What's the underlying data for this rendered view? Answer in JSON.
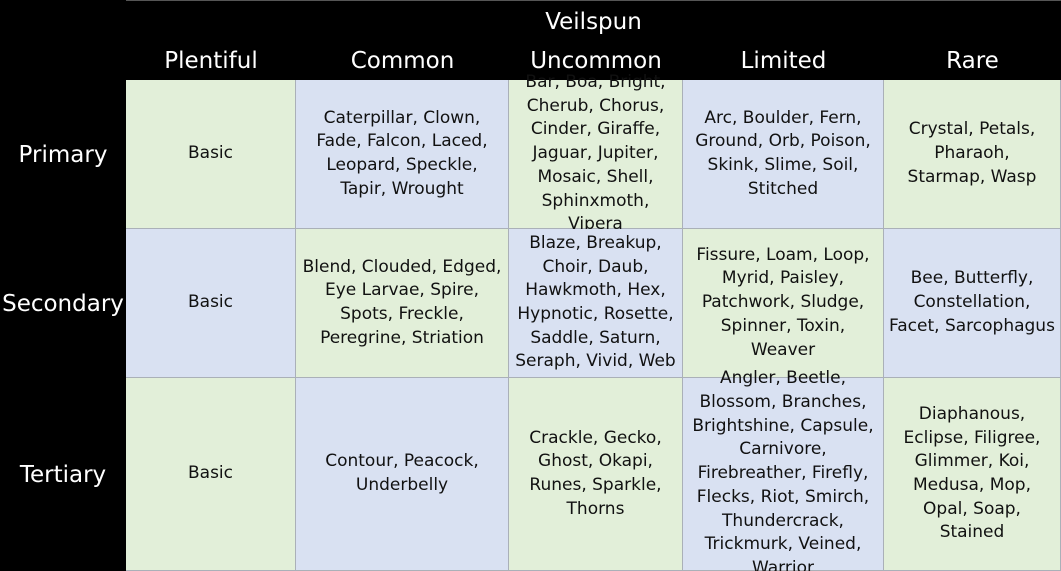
{
  "title": "Veilspun",
  "colors": {
    "green_cell": "#e2efd9",
    "blue_cell": "#d9e1f2",
    "header_bg": "#000000",
    "header_text": "#ffffff"
  },
  "columns": [
    "Plentiful",
    "Common",
    "Uncommon",
    "Limited",
    "Rare"
  ],
  "rows": [
    {
      "label": "Primary",
      "cells": [
        "Basic",
        "Caterpillar, Clown, Fade, Falcon, Laced, Leopard, Speckle, Tapir, Wrought",
        "Bar, Boa, Bright, Cherub, Chorus, Cinder, Giraffe, Jaguar, Jupiter, Mosaic, Shell, Sphinxmoth, Vipera",
        "Arc, Boulder, Fern, Ground, Orb, Poison, Skink, Slime, Soil, Stitched",
        "Crystal, Petals, Pharaoh, Starmap, Wasp"
      ]
    },
    {
      "label": "Secondary",
      "cells": [
        "Basic",
        "Blend, Clouded, Edged, Eye Larvae, Spire, Spots, Freckle, Peregrine, Striation",
        "Blaze, Breakup, Choir, Daub, Hawkmoth, Hex, Hypnotic, Rosette, Saddle, Saturn, Seraph, Vivid, Web",
        "Fissure, Loam, Loop, Myrid, Paisley, Patchwork, Sludge, Spinner, Toxin, Weaver",
        "Bee, Butterfly, Constellation, Facet, Sarcophagus"
      ]
    },
    {
      "label": "Tertiary",
      "cells": [
        "Basic",
        "Contour, Peacock, Underbelly",
        "Crackle, Gecko, Ghost, Okapi, Runes, Sparkle, Thorns",
        "Angler, Beetle, Blossom, Branches, Brightshine, Capsule, Carnivore, Firebreather, Firefly, Flecks, Riot, Smirch, Thundercrack, Trickmurk, Veined, Warrior",
        "Diaphanous, Eclipse, Filigree, Glimmer, Koi, Medusa, Mop, Opal, Soap, Stained"
      ]
    }
  ]
}
